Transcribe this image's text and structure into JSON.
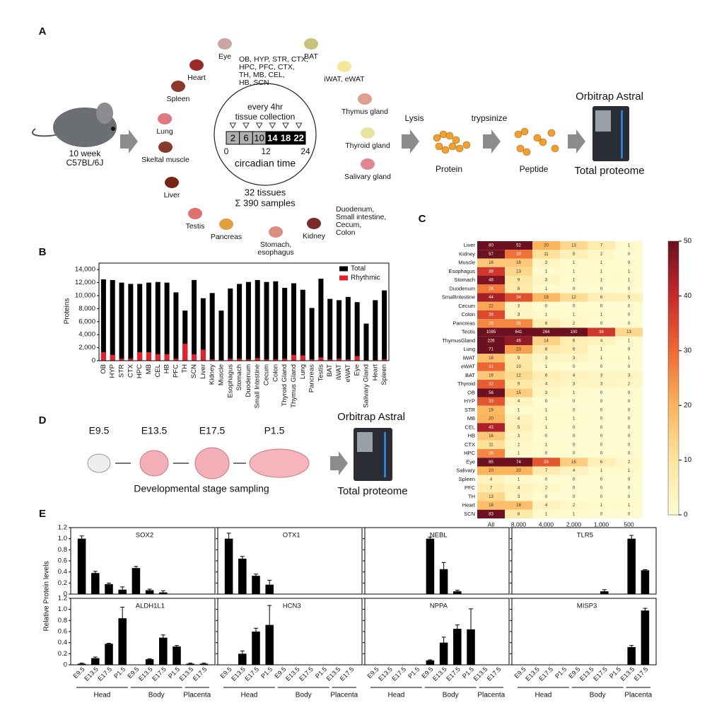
{
  "panel_a": {
    "label": "A",
    "mouse": [
      "10 week",
      "C57BL/6J"
    ],
    "tissues": [
      [
        "Eye"
      ],
      [
        "OB, HYP, STR, CTX,",
        "HPC, PFC, CTX,",
        "TH, MB, CEL,",
        "HB, SCN"
      ],
      [
        "BAT"
      ],
      [
        "iWAT, eWAT"
      ],
      [
        "Heart"
      ],
      [
        "Spleen"
      ],
      [
        "Lung"
      ],
      [
        "Skeltal muscle"
      ],
      [
        "Liver"
      ],
      [
        "Testis"
      ],
      [
        "Pancreas"
      ],
      [
        "Stomach,",
        "esophagus"
      ],
      [
        "Kidney"
      ],
      [
        "Thymus gland"
      ],
      [
        "Thyroid gland"
      ],
      [
        "Salivary gland"
      ],
      [
        "Duodenum,",
        "Small intestine,",
        "Cecum,",
        "Colon"
      ]
    ],
    "collection": [
      "every 4hr",
      "tissue collection"
    ],
    "times": [
      2,
      6,
      10,
      14,
      18,
      22
    ],
    "axis": [
      0,
      12,
      24
    ],
    "axis_label": "circadian time",
    "summary": [
      "32 tissues",
      "Σ 390 samples"
    ],
    "lysis": "Lysis",
    "trypsinize": "trypsinize",
    "protein": "Protein",
    "peptide": "Peptide",
    "instrument": "Orbitrap Astral",
    "output": "Total proteome"
  },
  "panel_d": {
    "label": "D",
    "stages": [
      "E9.5",
      "E13.5",
      "E17.5",
      "P1.5"
    ],
    "caption": "Developmental stage sampling",
    "instrument": "Orbitrap Astral",
    "output": "Total proteome"
  },
  "chart_data": [
    {
      "type": "bar",
      "panel": "B",
      "ylabel": "Proteins",
      "categories": [
        "OB",
        "HYP",
        "STR",
        "CTX",
        "HPC",
        "MB",
        "CEL",
        "HB",
        "PFC",
        "TH",
        "SCN",
        "Liver",
        "Kidney",
        "Muscle",
        "Esophagus",
        "Stomach",
        "Duodenum",
        "Small Intestine",
        "Cecum",
        "Colon",
        "Thyroid Gland",
        "Thymus Gland",
        "Lung",
        "Pancreas",
        "Testis",
        "BAT",
        "iWAT",
        "eWAT",
        "Eye",
        "Salivary Gland",
        "Heart",
        "Spleen"
      ],
      "series": [
        {
          "name": "Total",
          "color": "#000000",
          "values": [
            12500,
            12400,
            12000,
            11800,
            11800,
            12000,
            12100,
            12000,
            10500,
            7700,
            12400,
            9600,
            10400,
            7700,
            11100,
            11800,
            12100,
            12400,
            12100,
            12200,
            11200,
            11900,
            10900,
            8100,
            12600,
            9500,
            9300,
            9800,
            9000,
            5700,
            9300,
            10800
          ]
        },
        {
          "name": "Rhythmic",
          "color": "#e8202a",
          "values": [
            1300,
            900,
            300,
            300,
            1300,
            1300,
            1000,
            1000,
            300,
            2600,
            1000,
            1700,
            200,
            100,
            300,
            300,
            200,
            400,
            200,
            200,
            300,
            900,
            800,
            200,
            500,
            200,
            300,
            200,
            700,
            100,
            100,
            200
          ]
        }
      ],
      "ylim": [
        0,
        15000
      ],
      "yticks": [
        0,
        {
          "value": 2000,
          "label": "2,000"
        },
        {
          "value": 4000,
          "label": "4,000"
        },
        {
          "value": 6000,
          "label": "6,000"
        },
        {
          "value": 8000,
          "label": "8,000"
        },
        {
          "value": 10000,
          "label": "10,000"
        },
        {
          "value": 12000,
          "label": "12,000"
        },
        {
          "value": 14000,
          "label": "14,000"
        }
      ],
      "legend": "upper right"
    },
    {
      "type": "heatmap",
      "panel": "C",
      "rows": [
        "Liver",
        "Kidney",
        "Muscle",
        "Esophagus",
        "Stomach",
        "Duodenum",
        "SmallIntestine",
        "Cecum",
        "Colon",
        "Pancreas",
        "Testis",
        "ThymusGland",
        "Lung",
        "iWAT",
        "eWAT",
        "BAT",
        "Thyroid",
        "OB",
        "HYP",
        "STR",
        "MB",
        "CEL",
        "HB",
        "CTX",
        "HPC",
        "Eye",
        "Salivary",
        "Spleen",
        "PFC",
        "TH",
        "Heart",
        "SCN"
      ],
      "columns": [
        "All",
        "8,000",
        "4,000",
        "2,000",
        "1,000",
        "500"
      ],
      "values": [
        [
          80,
          52,
          20,
          13,
          7,
          1
        ],
        [
          57,
          29,
          11,
          5,
          2,
          0
        ],
        [
          16,
          16,
          3,
          1,
          1,
          0
        ],
        [
          38,
          13,
          1,
          1,
          1,
          1
        ],
        [
          48,
          9,
          3,
          1,
          1,
          1
        ],
        [
          28,
          8,
          1,
          0,
          0,
          0
        ],
        [
          44,
          34,
          19,
          12,
          6,
          5
        ],
        [
          22,
          3,
          0,
          0,
          0,
          0
        ],
        [
          35,
          3,
          1,
          1,
          1,
          0
        ],
        [
          26,
          26,
          6,
          2,
          0,
          0
        ],
        [
          1085,
          641,
          264,
          100,
          38,
          13
        ],
        [
          226,
          46,
          14,
          6,
          4,
          1
        ],
        [
          71,
          23,
          8,
          6,
          1,
          0
        ],
        [
          18,
          9,
          3,
          3,
          1,
          1
        ],
        [
          31,
          10,
          1,
          0,
          0,
          0
        ],
        [
          16,
          12,
          6,
          4,
          3,
          3
        ],
        [
          32,
          9,
          4,
          3,
          3,
          2
        ],
        [
          56,
          15,
          3,
          1,
          0,
          0
        ],
        [
          33,
          4,
          0,
          0,
          0,
          0
        ],
        [
          19,
          1,
          1,
          0,
          0,
          0
        ],
        [
          20,
          4,
          1,
          1,
          0,
          0
        ],
        [
          43,
          5,
          1,
          0,
          0,
          0
        ],
        [
          16,
          3,
          0,
          0,
          0,
          0
        ],
        [
          11,
          2,
          1,
          0,
          0,
          0
        ],
        [
          26,
          1,
          0,
          0,
          0,
          0
        ],
        [
          85,
          74,
          33,
          15,
          6,
          2
        ],
        [
          20,
          20,
          7,
          4,
          1,
          1
        ],
        [
          4,
          1,
          0,
          0,
          0,
          0
        ],
        [
          7,
          4,
          2,
          0,
          0,
          0
        ],
        [
          13,
          3,
          0,
          0,
          0,
          0
        ],
        [
          18,
          18,
          4,
          2,
          1,
          1
        ],
        [
          83,
          8,
          1,
          1,
          0,
          0
        ]
      ],
      "zlim": [
        0,
        50
      ],
      "zticks": [
        0,
        10,
        20,
        30,
        40,
        50
      ]
    },
    {
      "type": "bar-grid",
      "panel": "E",
      "ylabel": "Relative Protein levels",
      "groups": [
        "Head",
        "Body",
        "Placenta"
      ],
      "categories": [
        [
          "E9.5",
          "E13.5",
          "E17.5",
          "P1.5"
        ],
        [
          "E9.5",
          "E13.5",
          "E17.5",
          "P1.5"
        ],
        [
          "E13.5",
          "E17.5"
        ]
      ],
      "ylim": [
        0,
        1.2
      ],
      "yticks": [
        {
          "value": 0,
          "label": "0"
        },
        {
          "value": 0.2,
          "label": "0.2"
        },
        {
          "value": 0.4,
          "label": "0.4"
        },
        {
          "value": 0.6,
          "label": "0.6"
        },
        {
          "value": 0.8,
          "label": "0.8"
        },
        {
          "value": 1.0,
          "label": "1.0"
        },
        {
          "value": 1.2,
          "label": "1.2"
        }
      ],
      "color": "#000000",
      "panels": [
        {
          "name": "SOX2",
          "values": [
            1.0,
            0.38,
            0.18,
            0.08,
            0.47,
            0.07,
            0.03,
            0,
            0,
            0
          ],
          "errors": [
            0.05,
            0.03,
            0.02,
            0.05,
            0.03,
            0.02,
            0.03,
            0,
            0,
            0
          ]
        },
        {
          "name": "OTX1",
          "values": [
            1.0,
            0.64,
            0.33,
            0.17,
            0,
            0,
            0,
            0,
            0,
            0
          ],
          "errors": [
            0.1,
            0.04,
            0.03,
            0.08,
            0,
            0,
            0,
            0,
            0,
            0
          ]
        },
        {
          "name": "NEBL",
          "values": [
            0,
            0,
            0,
            0,
            1.0,
            0.45,
            0.05,
            0,
            0,
            0
          ],
          "errors": [
            0,
            0,
            0,
            0,
            0.03,
            0.12,
            0.02,
            0,
            0,
            0
          ]
        },
        {
          "name": "TLR5",
          "values": [
            0,
            0,
            0,
            0,
            0,
            0,
            0.05,
            0,
            1.0,
            0.43
          ],
          "errors": [
            0,
            0,
            0,
            0,
            0,
            0,
            0.03,
            0,
            0.06,
            0.01
          ]
        },
        {
          "name": "ALDH1L1",
          "values": [
            0.02,
            0.12,
            0.38,
            0.84,
            0,
            0.1,
            0.49,
            0.33,
            0.02,
            0.02
          ],
          "errors": [
            0.01,
            0.02,
            0.01,
            0.2,
            0,
            0.01,
            0.05,
            0.02,
            0.01,
            0.01
          ]
        },
        {
          "name": "HCN3",
          "values": [
            0,
            0.2,
            0.6,
            0.72,
            0,
            0,
            0,
            0,
            0,
            0
          ],
          "errors": [
            0,
            0.05,
            0.06,
            0.35,
            0,
            0,
            0,
            0,
            0,
            0
          ]
        },
        {
          "name": "NPPA",
          "values": [
            0,
            0,
            0,
            0,
            0.08,
            0.4,
            0.65,
            0.64,
            0,
            0
          ],
          "errors": [
            0,
            0,
            0,
            0,
            0.01,
            0.1,
            0.07,
            0.37,
            0,
            0
          ]
        },
        {
          "name": "MISP3",
          "values": [
            0,
            0,
            0,
            0,
            0,
            0,
            0,
            0,
            0.32,
            0.98
          ],
          "errors": [
            0,
            0,
            0,
            0,
            0,
            0,
            0,
            0,
            0.03,
            0.04
          ]
        }
      ]
    }
  ]
}
